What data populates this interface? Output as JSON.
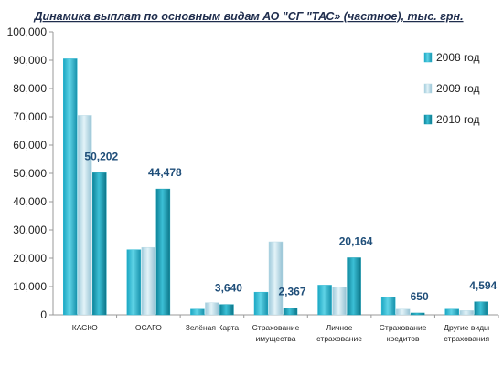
{
  "chart_data": {
    "type": "bar",
    "title": "Динамика выплат по основным видам АО \"СГ \"ТАС» (частное), тыс. грн.",
    "categories": [
      [
        "КАСКО"
      ],
      [
        "ОСАГО"
      ],
      [
        "Зелёная Карта"
      ],
      [
        "Страхование",
        "имущества"
      ],
      [
        "Личное",
        "страхование"
      ],
      [
        "Страхование",
        "кредитов"
      ],
      [
        "Другие виды",
        "страхования"
      ]
    ],
    "series": [
      {
        "name": "2008 год",
        "color": "#2bb7d1",
        "values": [
          90500,
          23000,
          2000,
          8000,
          10500,
          6200,
          2000
        ]
      },
      {
        "name": "2009 год",
        "color": "#b9dbe6",
        "values": [
          70500,
          23800,
          4300,
          25800,
          9800,
          2000,
          1500
        ]
      },
      {
        "name": "2010 год",
        "color": "#159bb1",
        "values": [
          50202,
          44478,
          3640,
          2367,
          20164,
          650,
          4594
        ]
      }
    ],
    "data_labels": [
      "50,202",
      "44,478",
      "3,640",
      "2,367",
      "20,164",
      "650",
      "4,594"
    ],
    "ylim": [
      0,
      100000
    ],
    "yticks": [
      "0",
      "10,000",
      "20,000",
      "30,000",
      "40,000",
      "50,000",
      "60,000",
      "70,000",
      "80,000",
      "90,000",
      "100,000"
    ],
    "legend_position": "right",
    "grid": false
  }
}
